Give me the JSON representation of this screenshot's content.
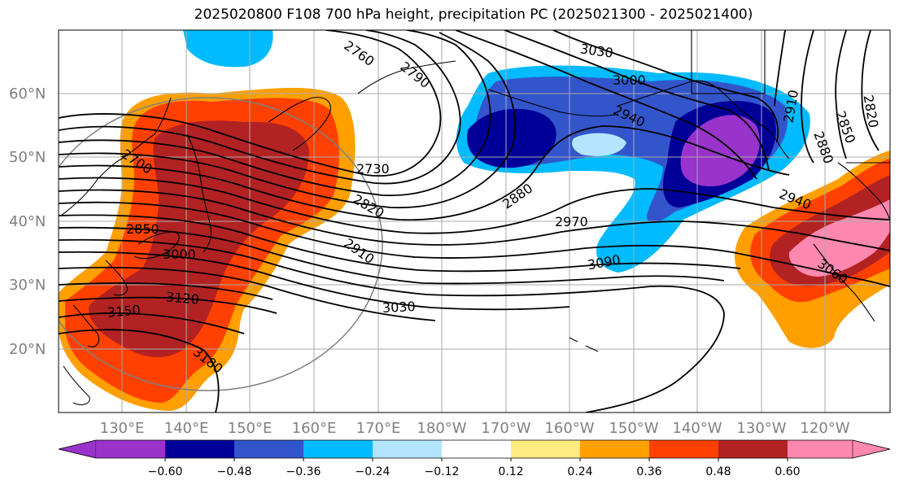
{
  "title": "2025020800 F108 700 hPa height, precipitation PC (2025021300 - 2025021400)",
  "map": {
    "latitude_labels": [
      "60°N",
      "50°N",
      "40°N",
      "30°N",
      "20°N"
    ],
    "longitude_labels": [
      "130°E",
      "140°E",
      "150°E",
      "160°E",
      "170°E",
      "180°W",
      "170°W",
      "160°W",
      "150°W",
      "140°W",
      "130°W",
      "120°W"
    ],
    "contour_labels": [
      "2760",
      "2790",
      "3030",
      "3000",
      "2940",
      "2910",
      "2850",
      "2880",
      "2820",
      "2700",
      "2730",
      "2820",
      "2880",
      "2970",
      "2940",
      "2850",
      "3000",
      "2910",
      "3090",
      "3060",
      "3120",
      "3150",
      "3030",
      "3180"
    ],
    "colors": {
      "pc_lt_-0.60": "#9933cc",
      "pc_-0.60_-0.48": "#000099",
      "pc_-0.48_-0.36": "#3355cc",
      "pc_-0.36_-0.24": "#00bbff",
      "pc_-0.24_-0.12": "#b3e5ff",
      "pc_-0.12_0.12": "#ffffff",
      "pc_0.12_0.24": "#ffeb80",
      "pc_0.24_0.36": "#ffa000",
      "pc_0.36_0.48": "#ff4000",
      "pc_0.48_0.60": "#b22222",
      "pc_gt_0.60": "#ff88b0"
    }
  },
  "colorbar": {
    "ticks": [
      "−0.60",
      "−0.48",
      "−0.36",
      "−0.24",
      "−0.12",
      "0.12",
      "0.24",
      "0.36",
      "0.48",
      "0.60"
    ],
    "colors": [
      "#9933cc",
      "#000099",
      "#3355cc",
      "#00bbff",
      "#b3e5ff",
      "#ffffff",
      "#ffeb80",
      "#ffa000",
      "#ff4000",
      "#b22222",
      "#ff88b0"
    ]
  }
}
